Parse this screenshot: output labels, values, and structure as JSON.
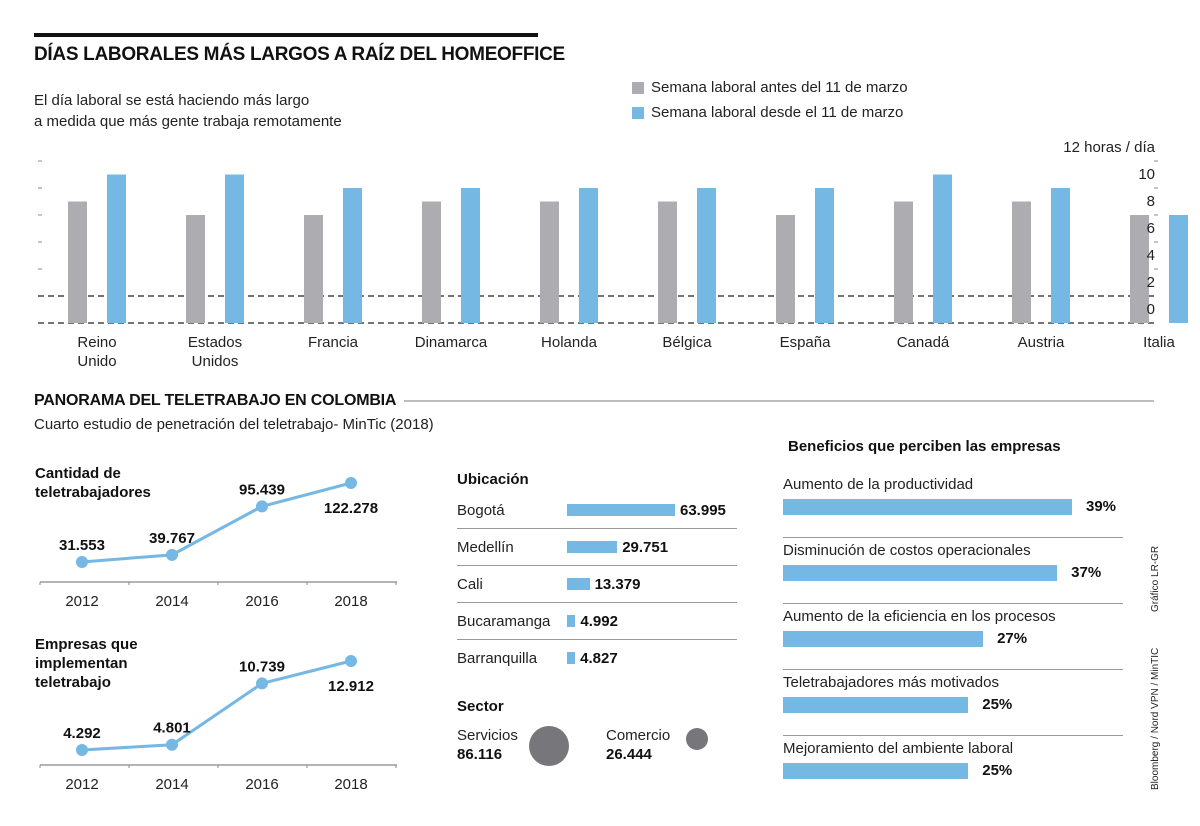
{
  "header": {
    "title": "DÍAS LABORALES MÁS LARGOS A RAÍZ DEL HOMEOFFICE",
    "subtitle_line1": "El día laboral se está haciendo más largo",
    "subtitle_line2": "a medida que más gente trabaja remotamente"
  },
  "colors": {
    "before": "#adadb1",
    "after": "#74b8e3",
    "line": "#74b8e3",
    "bubble": "#76767b"
  },
  "chart_data": [
    {
      "type": "bar",
      "title": "DÍAS LABORALES MÁS LARGOS A RAÍZ DEL HOMEOFFICE",
      "ylabel": "12 horas / día",
      "ylim": [
        0,
        12
      ],
      "ytick_labels": [
        "12 horas / día",
        "10",
        "8",
        "6",
        "4",
        "2",
        "0"
      ],
      "legend_position": "top-right",
      "categories": [
        "Reino Unido",
        "Estados Unidos",
        "Francia",
        "Dinamarca",
        "Holanda",
        "Bélgica",
        "España",
        "Canadá",
        "Austria",
        "Italia"
      ],
      "category_lines": [
        [
          "Reino",
          "Unido"
        ],
        [
          "Estados",
          "Unidos"
        ],
        [
          "Francia"
        ],
        [
          "Dinamarca"
        ],
        [
          "Holanda"
        ],
        [
          "Bélgica"
        ],
        [
          "España"
        ],
        [
          "Canadá"
        ],
        [
          "Austria"
        ],
        [
          "Italia"
        ]
      ],
      "series": [
        {
          "name": "Semana laboral antes del 11 de marzo",
          "values": [
            9,
            8,
            8,
            9,
            9,
            9,
            8,
            9,
            9,
            8
          ]
        },
        {
          "name": "Semana laboral desde el 11 de marzo",
          "values": [
            11,
            11,
            10,
            10,
            10,
            10,
            10,
            11,
            10,
            8
          ]
        }
      ]
    },
    {
      "type": "line",
      "title": "Cantidad de teletrabajadores",
      "title_lines": [
        "Cantidad de",
        "teletrabajadores"
      ],
      "x": [
        "2012",
        "2014",
        "2016",
        "2018"
      ],
      "values": [
        31553,
        39767,
        95439,
        122278
      ],
      "labels": [
        "31.553",
        "39.767",
        "95.439",
        "122.278"
      ]
    },
    {
      "type": "line",
      "title": "Empresas que implementan teletrabajo",
      "title_lines": [
        "Empresas que",
        "implementan",
        "teletrabajo"
      ],
      "x": [
        "2012",
        "2014",
        "2016",
        "2018"
      ],
      "values": [
        4292,
        4801,
        10739,
        12912
      ],
      "labels": [
        "4.292",
        "4.801",
        "10.739",
        "12.912"
      ]
    },
    {
      "type": "bar",
      "title": "Ubicación",
      "orientation": "horizontal",
      "categories": [
        "Bogotá",
        "Medellín",
        "Cali",
        "Bucaramanga",
        "Barranquilla"
      ],
      "values": [
        63995,
        29751,
        13379,
        4992,
        4827
      ],
      "labels": [
        "63.995",
        "29.751",
        "13.379",
        "4.992",
        "4.827"
      ]
    },
    {
      "type": "scatter",
      "title": "Sector",
      "categories": [
        "Servicios",
        "Comercio"
      ],
      "values": [
        86116,
        26444
      ],
      "labels": [
        "86.116",
        "26.444"
      ]
    },
    {
      "type": "bar",
      "title": "Beneficios que perciben las empresas",
      "orientation": "horizontal",
      "categories": [
        "Aumento de la productividad",
        "Disminución de costos operacionales",
        "Aumento de la eficiencia en los procesos",
        "Teletrabajadores más motivados",
        "Mejoramiento del ambiente laboral"
      ],
      "values": [
        39,
        37,
        27,
        25,
        25
      ],
      "labels": [
        "39%",
        "37%",
        "27%",
        "25%",
        "25%"
      ]
    }
  ],
  "section2": {
    "title": "PANORAMA DEL TELETRABAJO EN COLOMBIA",
    "subtitle": "Cuarto estudio de penetración del teletrabajo- MinTic (2018)"
  },
  "credits": {
    "graphic": "Gráfico LR-GR",
    "sources": "Bloomberg / Nord VPN / MinTIC"
  }
}
